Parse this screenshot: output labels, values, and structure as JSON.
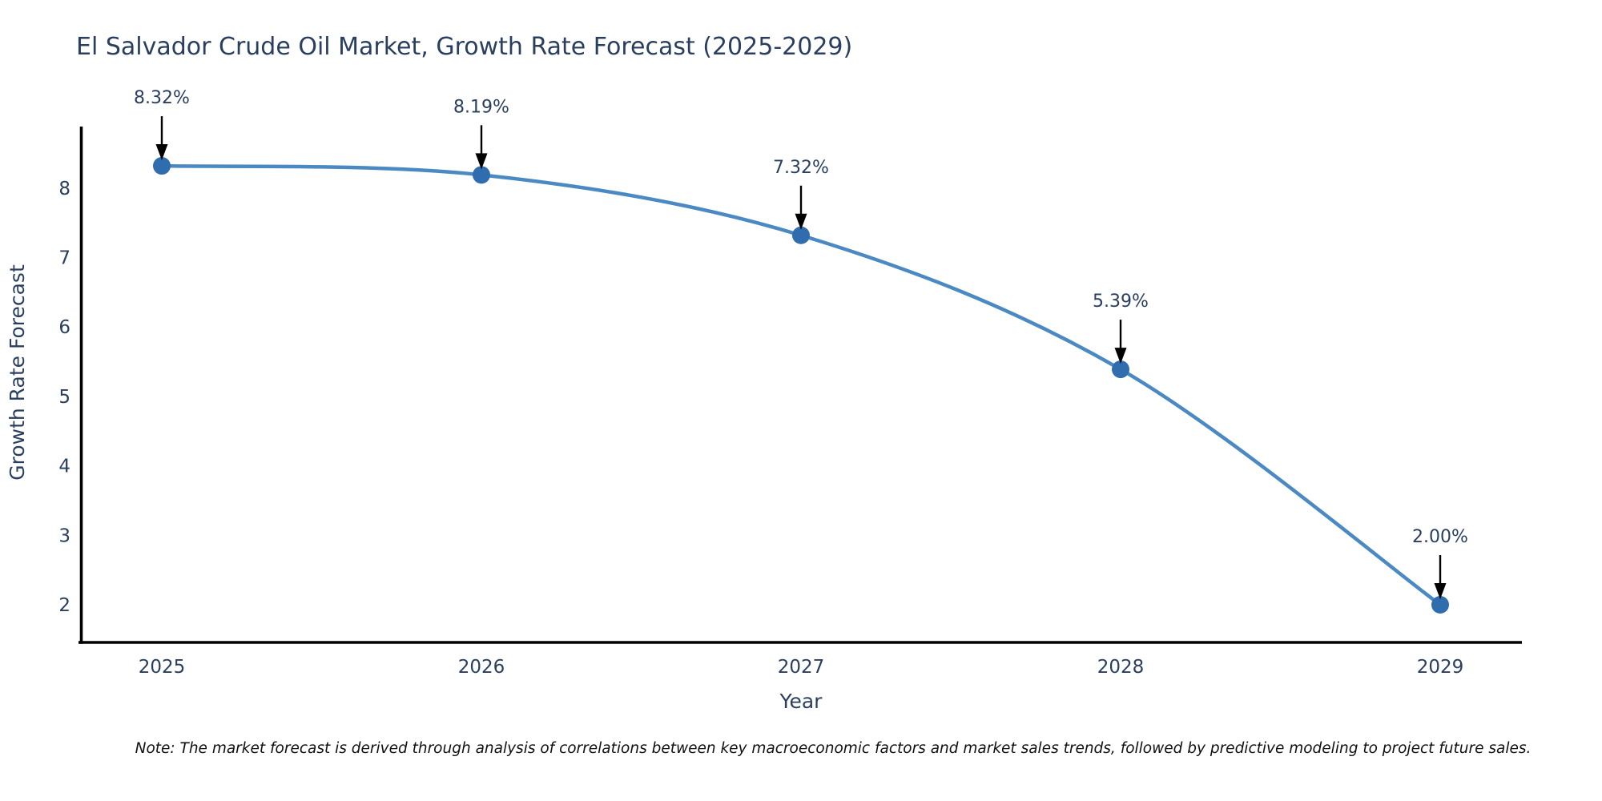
{
  "chart_data": {
    "type": "line",
    "line_shape": "spline",
    "title": "El Salvador Crude Oil Market, Growth Rate Forecast (2025-2029)",
    "xlabel": "Year",
    "ylabel": "Growth Rate Forecast",
    "categories": [
      "2025",
      "2026",
      "2027",
      "2028",
      "2029"
    ],
    "series": [
      {
        "name": "Growth Rate Forecast",
        "values": [
          8.32,
          8.19,
          7.32,
          5.39,
          2.0
        ]
      }
    ],
    "point_labels": [
      "8.32%",
      "8.19%",
      "7.32%",
      "5.39%",
      "2.00%"
    ],
    "yticks": [
      2,
      3,
      4,
      5,
      6,
      7,
      8
    ],
    "ylim": [
      1.45,
      8.85
    ],
    "grid": false,
    "legend_position": "none",
    "colors": {
      "line": "#4b89c2",
      "marker": "#2f6dae",
      "axis": "#000000",
      "text": "#2a3f5f",
      "annotation_arrow": "#000000",
      "note": "#111111",
      "background": "#ffffff"
    }
  },
  "footnote": "Note: The market forecast is derived through analysis of correlations between key macroeconomic factors and market sales trends, followed by predictive modeling to project future sales."
}
